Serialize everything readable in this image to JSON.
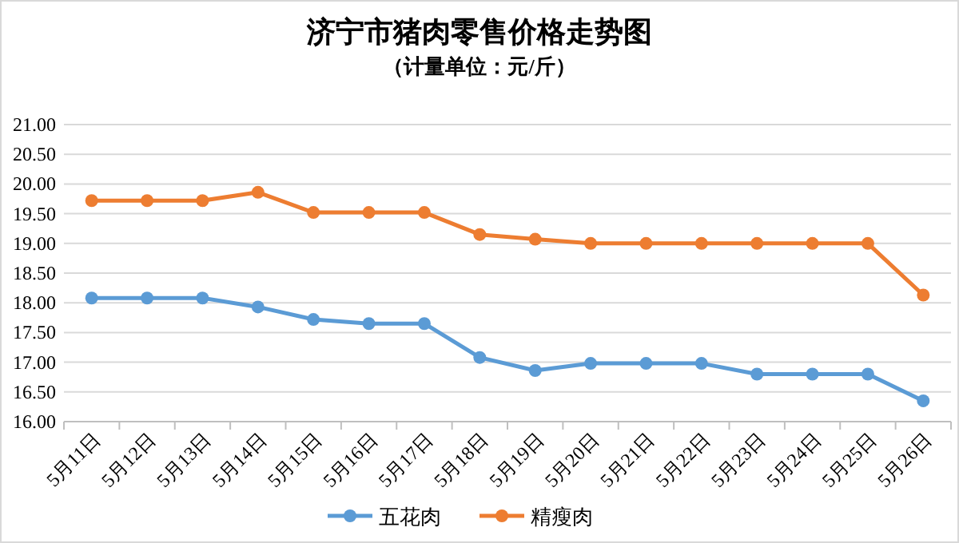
{
  "chart_data": {
    "type": "line",
    "title": "济宁市猪肉零售价格走势图",
    "subtitle": "（计量单位：元/斤）",
    "categories": [
      "5月11日",
      "5月12日",
      "5月13日",
      "5月14日",
      "5月15日",
      "5月16日",
      "5月17日",
      "5月18日",
      "5月19日",
      "5月20日",
      "5月21日",
      "5月22日",
      "5月23日",
      "5月24日",
      "5月25日",
      "5月26日"
    ],
    "series": [
      {
        "name": "五花肉",
        "color": "#5b9bd5",
        "values": [
          18.08,
          18.08,
          18.08,
          17.93,
          17.72,
          17.65,
          17.65,
          17.08,
          16.86,
          16.98,
          16.98,
          16.98,
          16.8,
          16.8,
          16.8,
          16.35
        ]
      },
      {
        "name": "精瘦肉",
        "color": "#ed7d31",
        "values": [
          19.72,
          19.72,
          19.72,
          19.86,
          19.52,
          19.52,
          19.52,
          19.15,
          19.07,
          19.0,
          19.0,
          19.0,
          19.0,
          19.0,
          19.0,
          18.13
        ]
      }
    ],
    "ylim": [
      16,
      21
    ],
    "yticks": [
      {
        "value": 16,
        "label": "16.00"
      },
      {
        "value": 16.5,
        "label": "16.50"
      },
      {
        "value": 17,
        "label": "17.00"
      },
      {
        "value": 17.5,
        "label": "17.50"
      },
      {
        "value": 18,
        "label": "18.00"
      },
      {
        "value": 18.5,
        "label": "18.50"
      },
      {
        "value": 19,
        "label": "19.00"
      },
      {
        "value": 19.5,
        "label": "19.50"
      },
      {
        "value": 20,
        "label": "20.00"
      },
      {
        "value": 20.5,
        "label": "20.50"
      },
      {
        "value": 21,
        "label": "21.00"
      }
    ],
    "grid": "y",
    "legend": "bottom",
    "marker": "circle",
    "line_style": "solid"
  }
}
